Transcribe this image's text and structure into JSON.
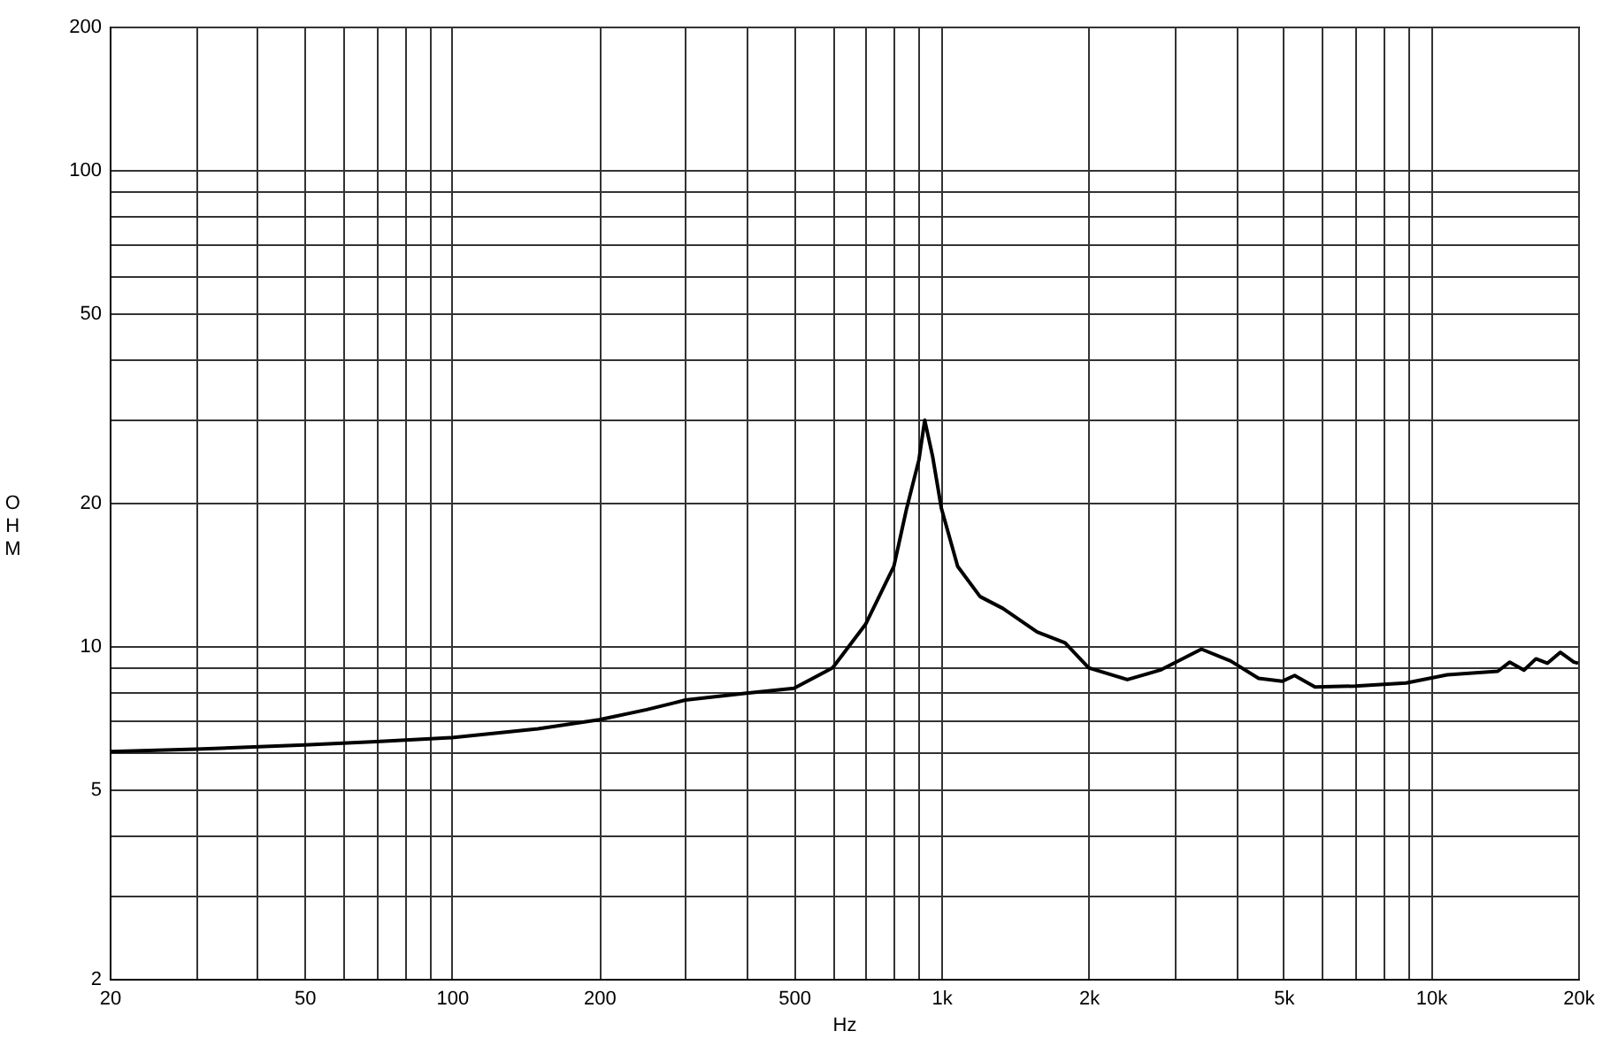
{
  "chart_data": {
    "type": "line",
    "xlabel": "Hz",
    "ylabel": "OHM",
    "log": "xy",
    "grid": true,
    "marker": "none",
    "line_style": "solid",
    "xlim": [
      20,
      20000
    ],
    "ylim": [
      2,
      200
    ],
    "xticks": [
      20,
      {
        "value": 30,
        "label": null
      },
      {
        "value": 40,
        "label": null
      },
      50,
      {
        "value": 60,
        "label": null
      },
      {
        "value": 70,
        "label": null
      },
      {
        "value": 80,
        "label": null
      },
      {
        "value": 90,
        "label": null
      },
      100,
      200,
      {
        "value": 300,
        "label": null
      },
      {
        "value": 400,
        "label": null
      },
      500,
      {
        "value": 600,
        "label": null
      },
      {
        "value": 700,
        "label": null
      },
      {
        "value": 800,
        "label": null
      },
      {
        "value": 900,
        "label": null
      },
      {
        "value": 1000,
        "label": "1k"
      },
      {
        "value": 2000,
        "label": "2k"
      },
      {
        "value": 3000,
        "label": null
      },
      {
        "value": 4000,
        "label": null
      },
      {
        "value": 5000,
        "label": "5k"
      },
      {
        "value": 6000,
        "label": null
      },
      {
        "value": 7000,
        "label": null
      },
      {
        "value": 8000,
        "label": null
      },
      {
        "value": 9000,
        "label": null
      },
      {
        "value": 10000,
        "label": "10k"
      },
      {
        "value": 20000,
        "label": "20k"
      }
    ],
    "yticks": [
      2,
      {
        "value": 3,
        "label": null
      },
      {
        "value": 4,
        "label": null
      },
      5,
      {
        "value": 6,
        "label": null
      },
      {
        "value": 7,
        "label": null
      },
      {
        "value": 8,
        "label": null
      },
      {
        "value": 9,
        "label": null
      },
      10,
      20,
      {
        "value": 30,
        "label": null
      },
      {
        "value": 40,
        "label": null
      },
      50,
      {
        "value": 60,
        "label": null
      },
      {
        "value": 70,
        "label": null
      },
      {
        "value": 80,
        "label": null
      },
      {
        "value": 90,
        "label": null
      },
      100,
      200
    ],
    "x": [
      20,
      30,
      50,
      70,
      100,
      150,
      200,
      250,
      300,
      400,
      500,
      600,
      700,
      800,
      850,
      900,
      925,
      960,
      1000,
      1080,
      1200,
      1335,
      1570,
      1790,
      2000,
      2400,
      2800,
      3400,
      3900,
      4450,
      4970,
      5270,
      5800,
      7000,
      8900,
      10800,
      13700,
      14500,
      15500,
      16400,
      17300,
      18400,
      19600,
      20000
    ],
    "series": [
      {
        "color": "#000000",
        "values": [
          6.0,
          6.07,
          6.2,
          6.3,
          6.42,
          6.7,
          7.0,
          7.35,
          7.7,
          7.96,
          8.15,
          9.0,
          11.1,
          14.7,
          19.5,
          24.6,
          29.8,
          25,
          19.5,
          14.7,
          12.7,
          12.0,
          10.7,
          10.15,
          9.0,
          8.5,
          8.9,
          9.85,
          9.3,
          8.55,
          8.43,
          8.67,
          8.2,
          8.24,
          8.36,
          8.7,
          8.85,
          9.25,
          8.9,
          9.4,
          9.2,
          9.7,
          9.25,
          9.2
        ]
      }
    ]
  }
}
